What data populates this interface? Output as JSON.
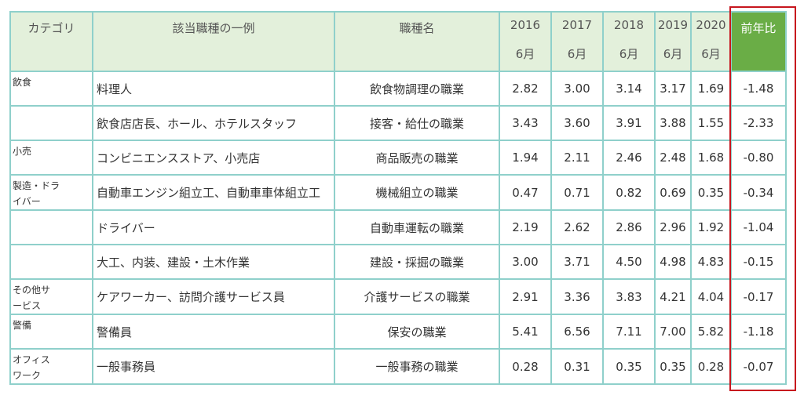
{
  "header": {
    "category": "カテゴリ",
    "example": "該当職種の一例",
    "occupation": "職種名",
    "years": [
      {
        "year": "2016",
        "month": "6月"
      },
      {
        "year": "2017",
        "month": "6月"
      },
      {
        "year": "2018",
        "month": "6月"
      },
      {
        "year": "2019",
        "month": "6月"
      },
      {
        "year": "2020",
        "month": "6月"
      }
    ],
    "yoy": "前年比"
  },
  "rows": [
    {
      "category": "飲食",
      "example": "料理人",
      "occupation": "飲食物調理の職業",
      "values": [
        "2.82",
        "3.00",
        "3.14",
        "3.17",
        "1.69"
      ],
      "yoy": "-1.48"
    },
    {
      "category": "",
      "example": "飲食店店長、ホール、ホテルスタッフ",
      "occupation": "接客・給仕の職業",
      "values": [
        "3.43",
        "3.60",
        "3.91",
        "3.88",
        "1.55"
      ],
      "yoy": "-2.33"
    },
    {
      "category": "小売",
      "example": "コンビニエンスストア、小売店",
      "occupation": "商品販売の職業",
      "values": [
        "1.94",
        "2.11",
        "2.46",
        "2.48",
        "1.68"
      ],
      "yoy": "-0.80"
    },
    {
      "category": "製造・ドライバー",
      "example": "自動車エンジン組立工、自動車車体組立工",
      "occupation": "機械組立の職業",
      "values": [
        "0.47",
        "0.71",
        "0.82",
        "0.69",
        "0.35"
      ],
      "yoy": "-0.34"
    },
    {
      "category": "",
      "example": "ドライバー",
      "occupation": "自動車運転の職業",
      "values": [
        "2.19",
        "2.62",
        "2.86",
        "2.96",
        "1.92"
      ],
      "yoy": "-1.04"
    },
    {
      "category": "",
      "example": "大工、内装、建設・土木作業",
      "occupation": "建設・採掘の職業",
      "values": [
        "3.00",
        "3.71",
        "4.50",
        "4.98",
        "4.83"
      ],
      "yoy": "-0.15"
    },
    {
      "category": "その他サービス",
      "example": "ケアワーカー、訪問介護サービス員",
      "occupation": "介護サービスの職業",
      "values": [
        "2.91",
        "3.36",
        "3.83",
        "4.21",
        "4.04"
      ],
      "yoy": "-0.17"
    },
    {
      "category": "警備",
      "example": "警備員",
      "occupation": "保安の職業",
      "values": [
        "5.41",
        "6.56",
        "7.11",
        "7.00",
        "5.82"
      ],
      "yoy": "-1.18"
    },
    {
      "category": "オフィスワーク",
      "example": "一般事務員",
      "occupation": "一般事務の職業",
      "values": [
        "0.28",
        "0.31",
        "0.35",
        "0.35",
        "0.28"
      ],
      "yoy": "-0.07"
    }
  ],
  "colors": {
    "border": "#8fd0cb",
    "header_bg": "#e3f0db",
    "yoy_header_bg": "#6aad46",
    "highlight": "#c7161e"
  }
}
